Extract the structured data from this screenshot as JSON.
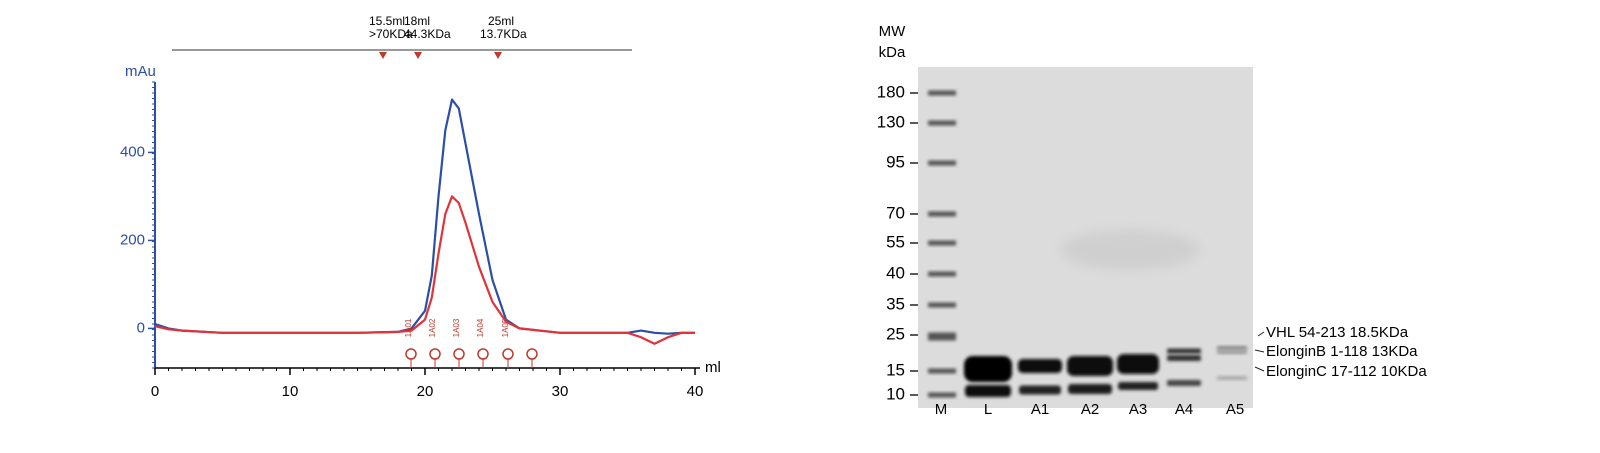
{
  "chart_data": {
    "type": "line",
    "x_label": "ml",
    "y_label": "mAu",
    "x": [
      0,
      1,
      2,
      5,
      10,
      15,
      18,
      19,
      20,
      20.5,
      21,
      21.5,
      22,
      22.5,
      23,
      24,
      25,
      26,
      27,
      30,
      35,
      36,
      37,
      38,
      39,
      40
    ],
    "series": [
      {
        "color": "#2b4fa6",
        "values": [
          10,
          0,
          -5,
          -10,
          -10,
          -10,
          -8,
          0,
          40,
          120,
          300,
          450,
          520,
          500,
          420,
          260,
          110,
          20,
          0,
          -10,
          -10,
          -5,
          -10,
          -12,
          -10,
          -10
        ]
      },
      {
        "color": "#e0333a",
        "values": [
          5,
          -2,
          -5,
          -10,
          -10,
          -10,
          -8,
          -5,
          20,
          70,
          170,
          260,
          300,
          285,
          240,
          140,
          60,
          15,
          0,
          -10,
          -10,
          -20,
          -35,
          -20,
          -10,
          -10
        ]
      }
    ],
    "xlim": [
      0,
      40
    ],
    "xticks": [
      0,
      10,
      20,
      30,
      40
    ],
    "ylim": [
      -90,
      560
    ],
    "yticks": [
      0,
      200,
      400
    ],
    "top_markers": [
      {
        "volume": "15.5ml",
        "mw": ">70KDa"
      },
      {
        "volume": "18ml",
        "mw": "44.3KDa"
      },
      {
        "volume": "25ml",
        "mw": "13.7KDa"
      }
    ],
    "fractions": [
      "1A01",
      "1A02",
      "1A03",
      "1A04",
      "1A05"
    ]
  },
  "gel": {
    "header": [
      "MW",
      "kDa"
    ],
    "markers": [
      "180",
      "130",
      "95",
      "70",
      "55",
      "40",
      "35",
      "25",
      "15",
      "10"
    ],
    "lanes": [
      "M",
      "L",
      "A1",
      "A2",
      "A3",
      "A4",
      "A5"
    ],
    "annotations": [
      "VHL 54-213 18.5KDa",
      "ElonginB 1-118 13KDa",
      "ElonginC 17-112 10KDa"
    ]
  }
}
